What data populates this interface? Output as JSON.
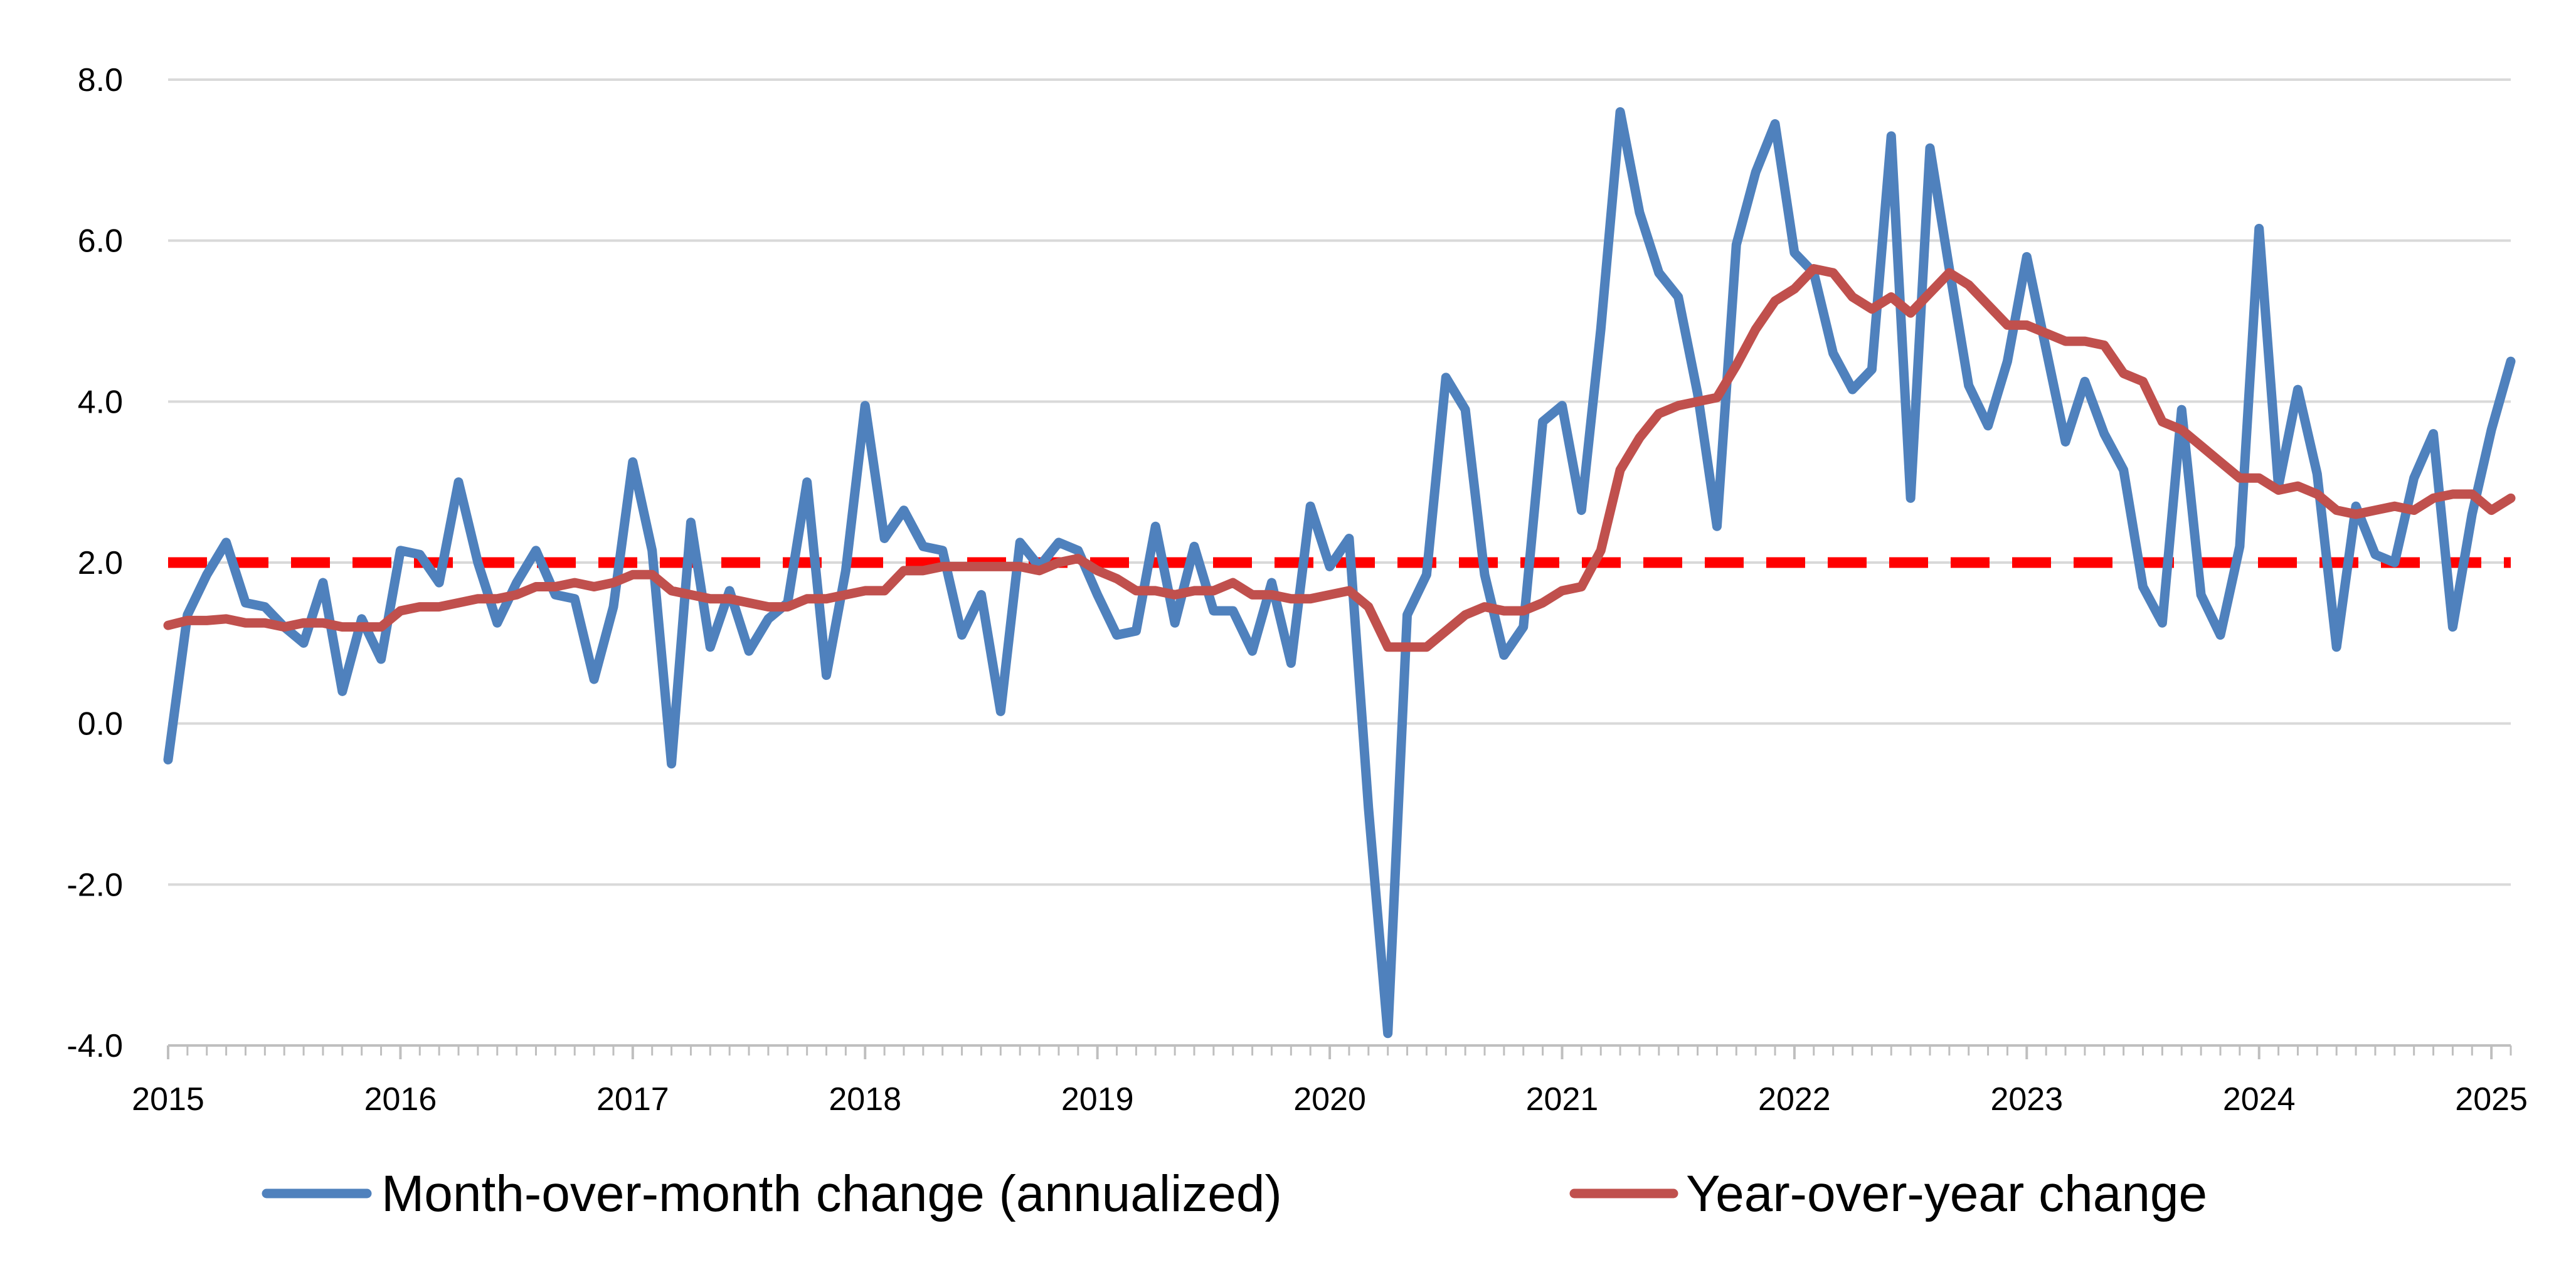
{
  "colors": {
    "mom": "#4F81BD",
    "yoy": "#C0504D",
    "target": "#FF0000",
    "grid": "#D9D9D9",
    "axis": "#BFBFBF"
  },
  "legend": {
    "mom_label": "Month-over-month change (annualized)",
    "yoy_label": "Year-over-year change"
  },
  "chart_data": {
    "type": "line",
    "xlabel": "",
    "ylabel": "",
    "ylim": [
      -4.0,
      8.0
    ],
    "xlim": [
      2015,
      2025.0833
    ],
    "y_ticks": [
      8.0,
      6.0,
      4.0,
      2.0,
      0.0,
      -2.0,
      -4.0
    ],
    "y_tick_labels": [
      "8.0",
      "6.0",
      "4.0",
      "2.0",
      "0.0",
      "-2.0",
      "-4.0"
    ],
    "x_ticks": [
      2015,
      2016,
      2017,
      2018,
      2019,
      2020,
      2021,
      2022,
      2023,
      2024,
      2025
    ],
    "x_tick_labels": [
      "2015",
      "2016",
      "2017",
      "2018",
      "2019",
      "2020",
      "2021",
      "2022",
      "2023",
      "2024",
      "2025"
    ],
    "grid": "horizontal",
    "legend_position": "bottom",
    "reference_line": {
      "y": 2.0,
      "style": "dashed"
    },
    "x_start": "2015-01",
    "x_step": "monthly",
    "series": [
      {
        "name": "Month-over-month change (annualized)",
        "values": [
          -0.45,
          1.35,
          1.85,
          2.25,
          1.5,
          1.45,
          1.2,
          1.0,
          1.75,
          0.4,
          1.3,
          0.8,
          2.15,
          2.1,
          1.75,
          3.0,
          2.0,
          1.25,
          1.75,
          2.15,
          1.6,
          1.55,
          0.55,
          1.45,
          3.25,
          2.15,
          -0.5,
          2.5,
          0.95,
          1.65,
          0.9,
          1.3,
          1.5,
          3.0,
          0.6,
          1.9,
          3.95,
          2.3,
          2.65,
          2.2,
          2.15,
          1.1,
          1.6,
          0.15,
          2.25,
          1.95,
          2.25,
          2.15,
          1.6,
          1.1,
          1.15,
          2.45,
          1.25,
          2.2,
          1.4,
          1.4,
          0.9,
          1.75,
          0.75,
          2.7,
          1.95,
          2.3,
          -1.05,
          -3.85,
          1.35,
          1.85,
          4.3,
          3.9,
          1.85,
          0.85,
          1.2,
          3.75,
          3.95,
          2.65,
          4.9,
          7.6,
          6.35,
          5.6,
          5.3,
          4.1,
          2.45,
          5.95,
          6.85,
          7.45,
          5.85,
          5.6,
          4.6,
          4.15,
          4.4,
          7.3,
          2.8,
          7.15,
          5.65,
          4.2,
          3.7,
          4.5,
          5.8,
          4.65,
          3.5,
          4.25,
          3.6,
          3.15,
          1.7,
          1.25,
          3.9,
          1.6,
          1.1,
          2.2,
          6.15,
          2.95,
          4.15,
          3.1,
          0.95,
          2.7,
          2.1,
          2.0,
          3.05,
          3.6,
          1.2,
          2.6,
          3.65,
          4.5
        ],
        "color": "#4F81BD"
      },
      {
        "name": "Year-over-year change",
        "values": [
          1.22,
          1.28,
          1.28,
          1.3,
          1.25,
          1.25,
          1.2,
          1.25,
          1.25,
          1.2,
          1.2,
          1.2,
          1.4,
          1.45,
          1.45,
          1.5,
          1.55,
          1.55,
          1.6,
          1.7,
          1.7,
          1.75,
          1.7,
          1.75,
          1.85,
          1.85,
          1.65,
          1.6,
          1.55,
          1.55,
          1.5,
          1.45,
          1.45,
          1.55,
          1.55,
          1.6,
          1.65,
          1.65,
          1.9,
          1.9,
          1.95,
          1.95,
          1.95,
          1.95,
          1.95,
          1.9,
          2.0,
          2.05,
          1.9,
          1.8,
          1.65,
          1.65,
          1.6,
          1.65,
          1.65,
          1.75,
          1.6,
          1.6,
          1.55,
          1.55,
          1.6,
          1.65,
          1.45,
          0.95,
          0.95,
          0.95,
          1.15,
          1.35,
          1.45,
          1.4,
          1.4,
          1.5,
          1.65,
          1.7,
          2.15,
          3.15,
          3.55,
          3.85,
          3.95,
          4.0,
          4.05,
          4.45,
          4.9,
          5.25,
          5.4,
          5.65,
          5.6,
          5.3,
          5.15,
          5.3,
          5.1,
          5.35,
          5.6,
          5.45,
          5.2,
          4.95,
          4.95,
          4.85,
          4.75,
          4.75,
          4.7,
          4.35,
          4.25,
          3.75,
          3.65,
          3.45,
          3.25,
          3.05,
          3.05,
          2.9,
          2.95,
          2.85,
          2.65,
          2.6,
          2.65,
          2.7,
          2.65,
          2.8,
          2.85,
          2.85,
          2.65,
          2.8
        ],
        "color": "#C0504D"
      }
    ]
  }
}
